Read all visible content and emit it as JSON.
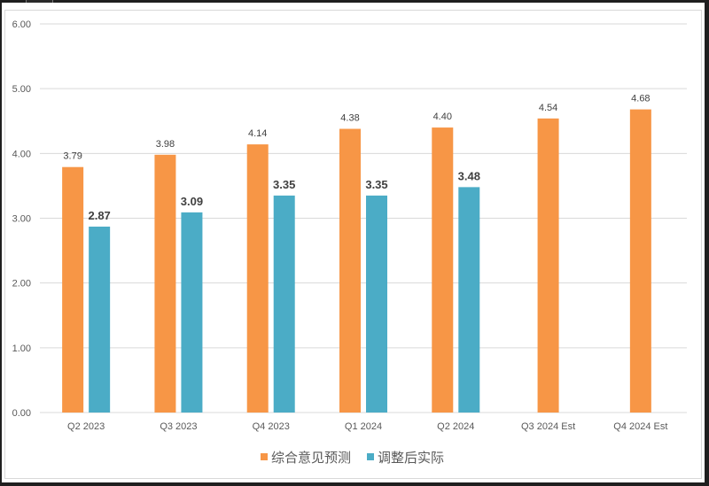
{
  "chart_data": {
    "type": "bar",
    "title": "",
    "xlabel": "",
    "ylabel": "",
    "categories": [
      "Q2 2023",
      "Q3 2023",
      "Q4 2023",
      "Q1 2024",
      "Q2 2024",
      "Q3 2024 Est",
      "Q4 2024 Est"
    ],
    "series": [
      {
        "name": "综合意见预测",
        "color": "#f79646",
        "values": [
          3.79,
          3.98,
          4.14,
          4.38,
          4.4,
          4.54,
          4.68
        ]
      },
      {
        "name": "调整后实际",
        "color": "#4bacc6",
        "values": [
          2.87,
          3.09,
          3.35,
          3.35,
          3.48,
          null,
          null
        ]
      }
    ],
    "yticks": [
      "0.00",
      "1.00",
      "2.00",
      "3.00",
      "4.00",
      "5.00",
      "6.00"
    ],
    "ylim": [
      0,
      6
    ],
    "grid": true,
    "legend": "bottom"
  }
}
